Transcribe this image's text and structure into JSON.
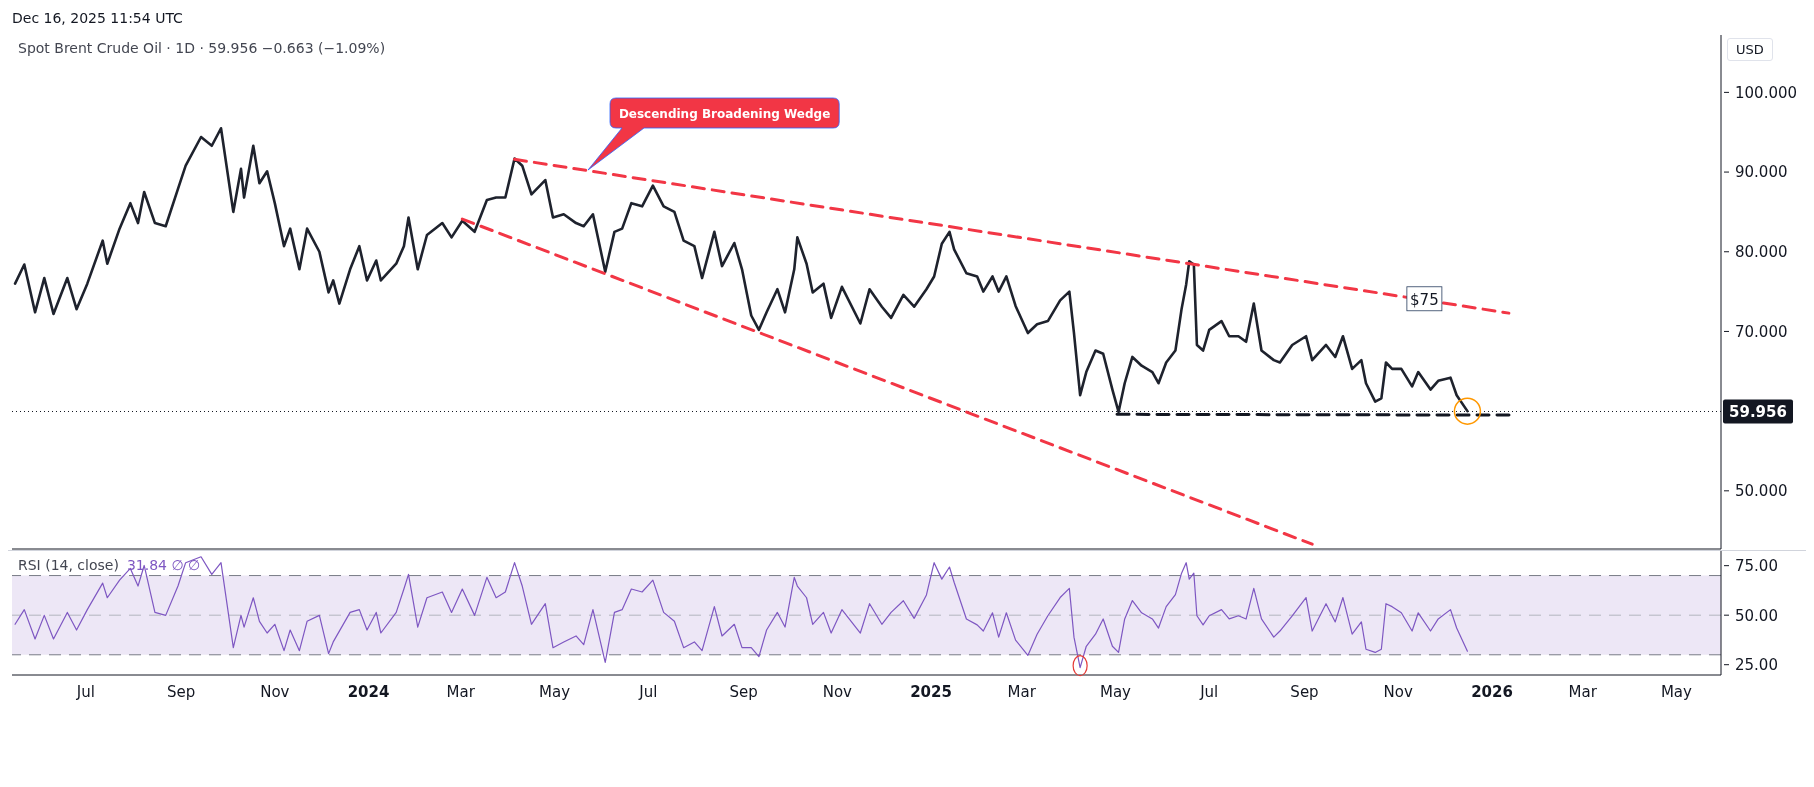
{
  "chart_data": [
    {
      "type": "line",
      "title": "Spot Brent Crude Oil · 1D · 59.956 −0.663 (−1.09%)",
      "ylabel": "USD",
      "annotations": [
        "Dec 16, 2025 11:54 UTC",
        "Descending Broadening Wedge",
        {
          "text": "$75",
          "x": "2025-11-18",
          "y": 74.1
        }
      ],
      "xlim": [
        "2023-05-14",
        "2026-05-30"
      ],
      "ylim": [
        42.7,
        107.2
      ],
      "yticks": [
        {
          "value": 50,
          "label": "50.000"
        },
        {
          "value": 70,
          "label": "70.000"
        },
        {
          "value": 80,
          "label": "80.000"
        },
        {
          "value": 90,
          "label": "90.000"
        },
        {
          "value": 100,
          "label": "100.000"
        }
      ],
      "tick_labels": "y",
      "series": [
        {
          "color": "#1e222d",
          "x": [
            "2023-05-16",
            "2023-05-22",
            "2023-05-29",
            "2023-06-04",
            "2023-06-10",
            "2023-06-19",
            "2023-06-25",
            "2023-07-02",
            "2023-07-12",
            "2023-07-15",
            "2023-07-23",
            "2023-07-30",
            "2023-08-04",
            "2023-08-08",
            "2023-08-15",
            "2023-08-22",
            "2023-08-30",
            "2023-09-04",
            "2023-09-14",
            "2023-09-21",
            "2023-09-27",
            "2023-10-05",
            "2023-10-10",
            "2023-10-12",
            "2023-10-18",
            "2023-10-22",
            "2023-10-27",
            "2023-11-01",
            "2023-11-07",
            "2023-11-11",
            "2023-11-17",
            "2023-11-22",
            "2023-11-30",
            "2023-12-06",
            "2023-12-09",
            "2023-12-13",
            "2023-12-20",
            "2023-12-26",
            "2023-12-31",
            "2024-01-06",
            "2024-01-09",
            "2024-01-19",
            "2024-01-24",
            "2024-01-27",
            "2024-02-02",
            "2024-02-08",
            "2024-02-18",
            "2024-02-24",
            "2024-03-02",
            "2024-03-10",
            "2024-03-18",
            "2024-03-24",
            "2024-03-30",
            "2024-04-05",
            "2024-04-10",
            "2024-04-16",
            "2024-04-25",
            "2024-04-30",
            "2024-05-07",
            "2024-05-15",
            "2024-05-20",
            "2024-05-26",
            "2024-06-03",
            "2024-06-09",
            "2024-06-14",
            "2024-06-20",
            "2024-06-27",
            "2024-07-04",
            "2024-07-11",
            "2024-07-18",
            "2024-07-24",
            "2024-07-31",
            "2024-08-05",
            "2024-08-13",
            "2024-08-18",
            "2024-08-26",
            "2024-08-31",
            "2024-09-06",
            "2024-09-11",
            "2024-09-16",
            "2024-09-23",
            "2024-09-28",
            "2024-10-04",
            "2024-10-06",
            "2024-10-12",
            "2024-10-16",
            "2024-10-23",
            "2024-10-28",
            "2024-11-04",
            "2024-11-16",
            "2024-11-22",
            "2024-11-30",
            "2024-12-06",
            "2024-12-14",
            "2024-12-21",
            "2024-12-29",
            "2025-01-03",
            "2025-01-08",
            "2025-01-13",
            "2025-01-16",
            "2025-01-24",
            "2025-01-31",
            "2025-02-04",
            "2025-02-10",
            "2025-02-14",
            "2025-02-19",
            "2025-02-25",
            "2025-03-05",
            "2025-03-11",
            "2025-03-18",
            "2025-03-26",
            "2025-04-01",
            "2025-04-04",
            "2025-04-08",
            "2025-04-12",
            "2025-04-18",
            "2025-04-23",
            "2025-04-29",
            "2025-05-03",
            "2025-05-07",
            "2025-05-12",
            "2025-05-18",
            "2025-05-25",
            "2025-05-29",
            "2025-06-03",
            "2025-06-09",
            "2025-06-13",
            "2025-06-16",
            "2025-06-18",
            "2025-06-21",
            "2025-06-23",
            "2025-06-27",
            "2025-07-01",
            "2025-07-09",
            "2025-07-14",
            "2025-07-20",
            "2025-07-25",
            "2025-07-30",
            "2025-08-04",
            "2025-08-12",
            "2025-08-16",
            "2025-08-24",
            "2025-09-02",
            "2025-09-06",
            "2025-09-15",
            "2025-09-21",
            "2025-09-26",
            "2025-10-02",
            "2025-10-08",
            "2025-10-11",
            "2025-10-17",
            "2025-10-21",
            "2025-10-24",
            "2025-10-28",
            "2025-11-03",
            "2025-11-10",
            "2025-11-14",
            "2025-11-22",
            "2025-11-27",
            "2025-12-05",
            "2025-12-09",
            "2025-12-16"
          ],
          "values": [
            76.0,
            78.4,
            72.4,
            76.7,
            72.2,
            76.7,
            72.8,
            76.0,
            81.4,
            78.5,
            82.9,
            86.1,
            83.6,
            87.5,
            83.6,
            83.2,
            87.9,
            90.8,
            94.4,
            93.3,
            95.5,
            85.0,
            90.4,
            86.8,
            93.3,
            88.6,
            90.1,
            86.1,
            80.7,
            82.9,
            77.8,
            82.9,
            80.0,
            74.9,
            76.4,
            73.5,
            77.8,
            80.7,
            76.4,
            78.9,
            76.4,
            78.5,
            80.7,
            84.3,
            77.8,
            82.1,
            83.6,
            81.8,
            83.9,
            82.5,
            86.5,
            86.8,
            86.8,
            91.7,
            90.8,
            87.2,
            89.0,
            84.3,
            84.7,
            83.6,
            83.2,
            84.7,
            77.5,
            82.5,
            82.9,
            86.1,
            85.7,
            88.3,
            85.7,
            85.0,
            81.4,
            80.7,
            76.7,
            82.5,
            78.2,
            81.1,
            77.8,
            72.0,
            70.2,
            72.4,
            75.3,
            72.4,
            77.8,
            81.8,
            78.5,
            74.9,
            76.0,
            71.7,
            75.6,
            71.0,
            75.3,
            73.1,
            71.7,
            74.6,
            73.1,
            75.3,
            76.9,
            81.0,
            82.5,
            80.3,
            77.3,
            76.9,
            75.0,
            76.9,
            75.0,
            76.9,
            73.2,
            69.8,
            70.9,
            71.3,
            73.9,
            75.0,
            69.8,
            62.0,
            64.9,
            67.6,
            67.2,
            62.7,
            59.9,
            63.5,
            66.8,
            65.7,
            64.9,
            63.5,
            66.1,
            67.6,
            72.8,
            75.9,
            78.8,
            78.4,
            68.3,
            67.6,
            70.2,
            71.3,
            69.4,
            69.4,
            68.7,
            73.5,
            67.6,
            66.4,
            66.1,
            68.3,
            69.4,
            66.4,
            68.3,
            66.8,
            69.4,
            65.3,
            66.4,
            63.5,
            61.2,
            61.6,
            66.1,
            65.3,
            65.3,
            63.1,
            64.9,
            62.7,
            63.8,
            64.2,
            62.0,
            60.0
          ]
        },
        {
          "type": "line",
          "color": "#f23645",
          "line_style": "dashed",
          "x": [
            "2024-04-05",
            "2026-01-12"
          ],
          "values": [
            91.6,
            72.3
          ]
        },
        {
          "type": "line",
          "color": "#f23645",
          "line_style": "dashed",
          "x": [
            "2024-03-02",
            "2025-09-06"
          ],
          "values": [
            84.1,
            43.3
          ]
        },
        {
          "type": "line",
          "color": "#131722",
          "line_style": "dashed",
          "x": [
            "2025-05-02",
            "2026-01-15"
          ],
          "values": [
            59.6,
            59.5
          ]
        }
      ],
      "ref_lines": [
        {
          "axis": "y",
          "value": 59.956,
          "label": "59.956",
          "color": "#131722",
          "line_style": "dotted"
        }
      ]
    },
    {
      "type": "line",
      "title": "RSI (14, close)",
      "subtitle": "31.84 ∅ ∅",
      "xlim": [
        "2023-05-14",
        "2026-05-30"
      ],
      "xticks": [
        {
          "value": "2023-07-01",
          "label": "Jul"
        },
        {
          "value": "2023-09-01",
          "label": "Sep"
        },
        {
          "value": "2023-11-01",
          "label": "Nov"
        },
        {
          "value": "2024-01-01",
          "label": "2024"
        },
        {
          "value": "2024-03-01",
          "label": "Mar"
        },
        {
          "value": "2024-05-01",
          "label": "May"
        },
        {
          "value": "2024-07-01",
          "label": "Jul"
        },
        {
          "value": "2024-09-01",
          "label": "Sep"
        },
        {
          "value": "2024-11-01",
          "label": "Nov"
        },
        {
          "value": "2025-01-01",
          "label": "2025"
        },
        {
          "value": "2025-03-01",
          "label": "Mar"
        },
        {
          "value": "2025-05-01",
          "label": "May"
        },
        {
          "value": "2025-07-01",
          "label": "Jul"
        },
        {
          "value": "2025-09-01",
          "label": "Sep"
        },
        {
          "value": "2025-11-01",
          "label": "Nov"
        },
        {
          "value": "2026-01-01",
          "label": "2026"
        },
        {
          "value": "2026-03-01",
          "label": "Mar"
        },
        {
          "value": "2026-05-01",
          "label": "May"
        }
      ],
      "ylim": [
        19.8,
        82.4
      ],
      "yticks": [
        {
          "value": 25,
          "label": "25.00"
        },
        {
          "value": 50,
          "label": "50.00"
        },
        {
          "value": 75,
          "label": "75.00"
        }
      ],
      "series": [
        {
          "color": "#7e57c2",
          "x": [
            "2023-05-16",
            "2023-05-22",
            "2023-05-29",
            "2023-06-04",
            "2023-06-10",
            "2023-06-19",
            "2023-06-25",
            "2023-07-02",
            "2023-07-12",
            "2023-07-15",
            "2023-07-23",
            "2023-07-30",
            "2023-08-04",
            "2023-08-08",
            "2023-08-15",
            "2023-08-22",
            "2023-08-30",
            "2023-09-04",
            "2023-09-14",
            "2023-09-21",
            "2023-09-27",
            "2023-10-05",
            "2023-10-10",
            "2023-10-12",
            "2023-10-18",
            "2023-10-22",
            "2023-10-27",
            "2023-11-01",
            "2023-11-07",
            "2023-11-11",
            "2023-11-17",
            "2023-11-22",
            "2023-11-30",
            "2023-12-06",
            "2023-12-09",
            "2023-12-20",
            "2023-12-26",
            "2023-12-31",
            "2024-01-06",
            "2024-01-09",
            "2024-01-19",
            "2024-01-24",
            "2024-01-27",
            "2024-02-02",
            "2024-02-08",
            "2024-02-18",
            "2024-02-24",
            "2024-03-02",
            "2024-03-10",
            "2024-03-18",
            "2024-03-24",
            "2024-03-30",
            "2024-04-05",
            "2024-04-10",
            "2024-04-16",
            "2024-04-25",
            "2024-04-30",
            "2024-05-07",
            "2024-05-15",
            "2024-05-20",
            "2024-05-26",
            "2024-06-03",
            "2024-06-09",
            "2024-06-14",
            "2024-06-20",
            "2024-06-27",
            "2024-07-04",
            "2024-07-11",
            "2024-07-18",
            "2024-07-24",
            "2024-07-31",
            "2024-08-05",
            "2024-08-13",
            "2024-08-18",
            "2024-08-26",
            "2024-08-31",
            "2024-09-06",
            "2024-09-11",
            "2024-09-16",
            "2024-09-23",
            "2024-09-28",
            "2024-10-04",
            "2024-10-06",
            "2024-10-12",
            "2024-10-16",
            "2024-10-23",
            "2024-10-28",
            "2024-11-04",
            "2024-11-16",
            "2024-11-22",
            "2024-11-30",
            "2024-12-06",
            "2024-12-14",
            "2024-12-21",
            "2024-12-29",
            "2025-01-03",
            "2025-01-08",
            "2025-01-13",
            "2025-01-16",
            "2025-01-24",
            "2025-01-31",
            "2025-02-04",
            "2025-02-10",
            "2025-02-14",
            "2025-02-19",
            "2025-02-25",
            "2025-03-05",
            "2025-03-11",
            "2025-03-18",
            "2025-03-26",
            "2025-04-01",
            "2025-04-04",
            "2025-04-08",
            "2025-04-12",
            "2025-04-18",
            "2025-04-23",
            "2025-04-29",
            "2025-05-03",
            "2025-05-07",
            "2025-05-12",
            "2025-05-18",
            "2025-05-25",
            "2025-05-29",
            "2025-06-03",
            "2025-06-09",
            "2025-06-13",
            "2025-06-16",
            "2025-06-18",
            "2025-06-21",
            "2025-06-23",
            "2025-06-27",
            "2025-07-01",
            "2025-07-09",
            "2025-07-14",
            "2025-07-20",
            "2025-07-25",
            "2025-07-30",
            "2025-08-04",
            "2025-08-12",
            "2025-08-16",
            "2025-08-24",
            "2025-09-02",
            "2025-09-06",
            "2025-09-15",
            "2025-09-21",
            "2025-09-26",
            "2025-10-02",
            "2025-10-08",
            "2025-10-11",
            "2025-10-17",
            "2025-10-21",
            "2025-10-24",
            "2025-10-28",
            "2025-11-03",
            "2025-11-10",
            "2025-11-14",
            "2025-11-22",
            "2025-11-27",
            "2025-12-05",
            "2025-12-09",
            "2025-12-16"
          ],
          "values": [
            45.4,
            52.8,
            38.0,
            49.9,
            38.0,
            51.4,
            42.5,
            52.8,
            66.2,
            58.8,
            67.7,
            73.6,
            64.7,
            75.1,
            51.4,
            49.9,
            64.7,
            76.5,
            79.5,
            70.6,
            76.5,
            33.6,
            49.9,
            44.0,
            58.8,
            46.9,
            41.0,
            45.4,
            32.1,
            42.5,
            32.1,
            46.9,
            49.9,
            30.6,
            36.5,
            51.4,
            52.8,
            42.5,
            51.4,
            41.0,
            51.4,
            63.2,
            70.6,
            44.0,
            58.8,
            61.7,
            51.4,
            63.2,
            49.9,
            69.1,
            58.8,
            61.7,
            76.5,
            64.7,
            45.4,
            55.8,
            33.6,
            36.5,
            39.5,
            35.1,
            52.8,
            26.2,
            51.4,
            52.8,
            63.2,
            61.7,
            67.7,
            51.4,
            46.9,
            33.6,
            36.5,
            32.1,
            54.3,
            39.5,
            45.4,
            33.6,
            33.6,
            29.1,
            42.5,
            51.4,
            44.0,
            69.1,
            64.7,
            58.8,
            45.4,
            51.4,
            41.0,
            52.8,
            41.0,
            55.8,
            45.4,
            51.4,
            57.3,
            48.4,
            60.2,
            76.5,
            68.2,
            74.3,
            66.6,
            48.1,
            45.1,
            42.0,
            51.2,
            38.9,
            51.2,
            37.4,
            29.7,
            40.4,
            49.7,
            58.9,
            63.5,
            38.9,
            23.5,
            34.3,
            40.4,
            48.1,
            34.3,
            31.2,
            48.1,
            57.4,
            51.2,
            48.1,
            43.5,
            54.3,
            60.4,
            71.2,
            76.5,
            68.2,
            71.2,
            49.7,
            45.1,
            49.7,
            52.8,
            48.1,
            49.7,
            48.1,
            63.5,
            48.1,
            38.9,
            42.0,
            49.7,
            58.9,
            42.0,
            55.8,
            46.6,
            58.9,
            40.4,
            46.6,
            32.8,
            31.2,
            32.8,
            55.8,
            54.3,
            51.2,
            42.0,
            51.2,
            42.0,
            48.1,
            52.8,
            43.5,
            31.8
          ]
        }
      ],
      "bands": [
        {
          "axis": "y",
          "from": 30,
          "to": 70,
          "color": "#ede7f6"
        }
      ],
      "ref_lines": [
        {
          "axis": "y",
          "value": 70,
          "color": "#787b86",
          "line_style": "dashed"
        },
        {
          "axis": "y",
          "value": 50,
          "color": "#b2b5be",
          "line_style": "dashed"
        },
        {
          "axis": "y",
          "value": 30,
          "color": "#787b86",
          "line_style": "dashed"
        }
      ]
    }
  ]
}
